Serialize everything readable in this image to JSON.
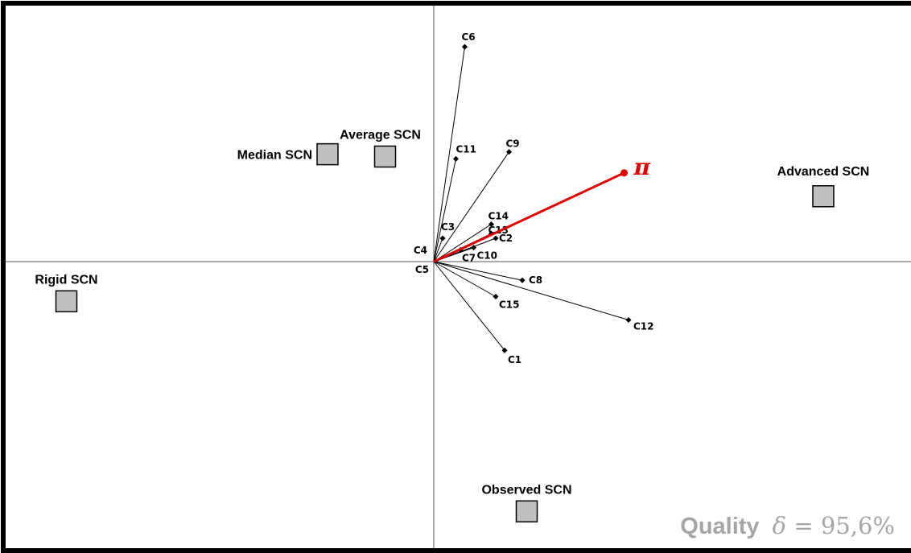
{
  "chart_data": {
    "type": "biplot",
    "axes": {
      "x_range": [
        -1,
        1
      ],
      "y_range": [
        -1,
        1
      ],
      "grid": false,
      "origin_axes": true
    },
    "vectors": [
      {
        "label": "C6",
        "x": 0.07,
        "y": 0.92
      },
      {
        "label": "C11",
        "x": 0.05,
        "y": 0.44
      },
      {
        "label": "C9",
        "x": 0.17,
        "y": 0.47
      },
      {
        "label": "C3",
        "x": 0.02,
        "y": 0.1
      },
      {
        "label": "C14",
        "x": 0.13,
        "y": 0.16
      },
      {
        "label": "C13",
        "x": 0.13,
        "y": 0.12
      },
      {
        "label": "C2",
        "x": 0.14,
        "y": 0.1
      },
      {
        "label": "C10",
        "x": 0.09,
        "y": 0.06
      },
      {
        "label": "C7",
        "x": 0.06,
        "y": 0.05
      },
      {
        "label": "C4",
        "x": 0.0,
        "y": 0.0
      },
      {
        "label": "C5",
        "x": 0.0,
        "y": 0.0
      },
      {
        "label": "C8",
        "x": 0.2,
        "y": -0.08
      },
      {
        "label": "C15",
        "x": 0.14,
        "y": -0.15
      },
      {
        "label": "C12",
        "x": 0.44,
        "y": -0.25
      },
      {
        "label": "C1",
        "x": 0.16,
        "y": -0.38
      }
    ],
    "pi_vector": {
      "label": "π",
      "x": 0.43,
      "y": 0.38,
      "color": "#e00000"
    },
    "supplementary_points": [
      {
        "label": "Median SCN",
        "x": -0.24,
        "y": 0.46
      },
      {
        "label": "Average SCN",
        "x": -0.11,
        "y": 0.45
      },
      {
        "label": "Advanced SCN",
        "x": 0.88,
        "y": 0.28
      },
      {
        "label": "Rigid SCN",
        "x": -0.83,
        "y": -0.17
      },
      {
        "label": "Observed SCN",
        "x": 0.21,
        "y": -1.07
      }
    ]
  },
  "quality": {
    "word": "Quality",
    "symbol": "δ",
    "equals": "=",
    "value": "95,6%"
  },
  "colors": {
    "pi": "#e00000",
    "point_fill": "#c0c0c0",
    "quality_text": "#a6a6a6"
  }
}
